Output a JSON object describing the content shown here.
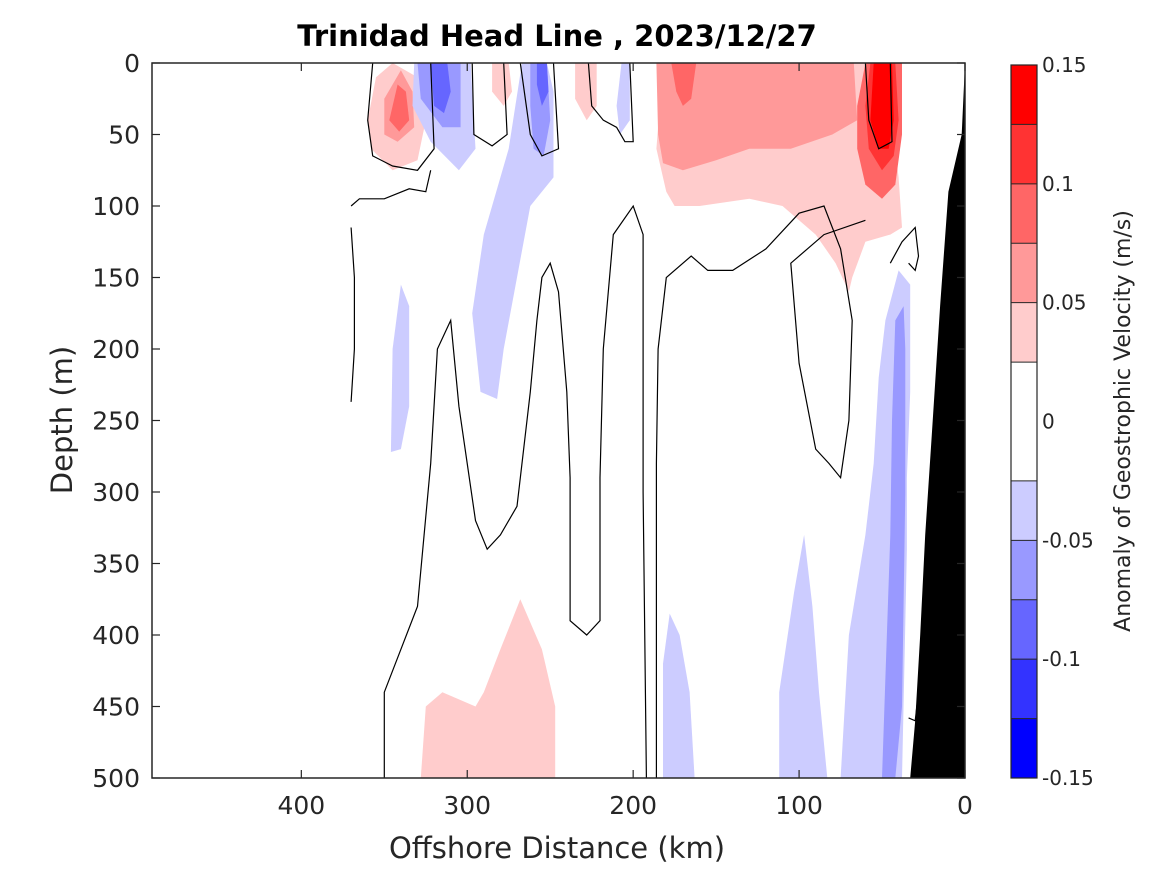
{
  "chart_data": {
    "type": "heatmap",
    "title": "Trinidad Head Line , 2023/12/27",
    "xlabel": "Offshore Distance (km)",
    "ylabel": "Depth (m)",
    "xlim": [
      490,
      0
    ],
    "ylim": [
      0,
      500
    ],
    "x_reversed": true,
    "y_reversed": true,
    "x_ticks": [
      "400",
      "300",
      "200",
      "100",
      "0"
    ],
    "x_tick_values": [
      400,
      300,
      200,
      100,
      0
    ],
    "y_ticks": [
      "0",
      "50",
      "100",
      "150",
      "200",
      "250",
      "300",
      "350",
      "400",
      "450",
      "500"
    ],
    "y_tick_values": [
      0,
      50,
      100,
      150,
      200,
      250,
      300,
      350,
      400,
      450,
      500
    ],
    "colorbar": {
      "label": "Anomaly of Geostrophic Velocity (m/s)",
      "ticks": [
        "0.15",
        "0.1",
        "0.05",
        "0",
        "-0.05",
        "-0.1",
        "-0.15"
      ],
      "tick_values": [
        0.15,
        0.1,
        0.05,
        0,
        -0.05,
        -0.1,
        -0.15
      ],
      "levels": [
        -0.15,
        -0.125,
        -0.1,
        -0.075,
        -0.05,
        -0.025,
        0.025,
        0.05,
        0.075,
        0.1,
        0.125,
        0.15
      ],
      "colors": [
        "#0000ff",
        "#3333ff",
        "#6666ff",
        "#9999ff",
        "#ccccff",
        "#ffffff",
        "#ffcccc",
        "#ff9999",
        "#ff6666",
        "#ff3333",
        "#ff0000"
      ]
    },
    "zero_contour": true,
    "bathymetry_color": "#000000",
    "regions": [
      {
        "level": 1,
        "points": [
          [
            345,
            0
          ],
          [
            355,
            10
          ],
          [
            360,
            40
          ],
          [
            358,
            60
          ],
          [
            345,
            75
          ],
          [
            330,
            68
          ],
          [
            325,
            40
          ],
          [
            330,
            10
          ]
        ]
      },
      {
        "level": 2,
        "points": [
          [
            340,
            5
          ],
          [
            350,
            25
          ],
          [
            350,
            50
          ],
          [
            342,
            55
          ],
          [
            332,
            45
          ],
          [
            333,
            20
          ]
        ]
      },
      {
        "level": 3,
        "points": [
          [
            342,
            15
          ],
          [
            347,
            40
          ],
          [
            341,
            48
          ],
          [
            335,
            40
          ],
          [
            337,
            20
          ]
        ]
      },
      {
        "level": -1,
        "points": [
          [
            322,
            0
          ],
          [
            332,
            0
          ],
          [
            333,
            30
          ],
          [
            322,
            55
          ],
          [
            305,
            75
          ],
          [
            295,
            60
          ],
          [
            298,
            0
          ]
        ]
      },
      {
        "level": -2,
        "points": [
          [
            318,
            0
          ],
          [
            330,
            0
          ],
          [
            328,
            25
          ],
          [
            315,
            45
          ],
          [
            304,
            45
          ],
          [
            304,
            0
          ]
        ]
      },
      {
        "level": -3,
        "points": [
          [
            316,
            0
          ],
          [
            322,
            0
          ],
          [
            320,
            30
          ],
          [
            314,
            35
          ],
          [
            310,
            20
          ],
          [
            312,
            0
          ]
        ]
      },
      {
        "level": 1,
        "points": [
          [
            285,
            0
          ],
          [
            275,
            0
          ],
          [
            273,
            20
          ],
          [
            278,
            30
          ],
          [
            285,
            20
          ]
        ]
      },
      {
        "level": -1,
        "points": [
          [
            267,
            0
          ],
          [
            252,
            0
          ],
          [
            248,
            20
          ],
          [
            248,
            80
          ],
          [
            262,
            100
          ],
          [
            278,
            200
          ],
          [
            282,
            235
          ],
          [
            292,
            230
          ],
          [
            297,
            175
          ],
          [
            290,
            120
          ],
          [
            275,
            60
          ]
        ]
      },
      {
        "level": -2,
        "points": [
          [
            262,
            0
          ],
          [
            252,
            0
          ],
          [
            250,
            40
          ],
          [
            254,
            65
          ],
          [
            260,
            60
          ],
          [
            262,
            30
          ]
        ]
      },
      {
        "level": -3,
        "points": [
          [
            258,
            0
          ],
          [
            252,
            0
          ],
          [
            251,
            20
          ],
          [
            255,
            30
          ],
          [
            258,
            15
          ]
        ]
      },
      {
        "level": 1,
        "points": [
          [
            235,
            0
          ],
          [
            222,
            0
          ],
          [
            222,
            30
          ],
          [
            228,
            40
          ],
          [
            235,
            25
          ]
        ]
      },
      {
        "level": -1,
        "points": [
          [
            207,
            0
          ],
          [
            202,
            0
          ],
          [
            202,
            40
          ],
          [
            208,
            50
          ],
          [
            210,
            30
          ]
        ]
      },
      {
        "level": 1,
        "points": [
          [
            186,
            0
          ],
          [
            184,
            30
          ],
          [
            186,
            60
          ],
          [
            180,
            90
          ],
          [
            175,
            100
          ],
          [
            160,
            100
          ],
          [
            130,
            95
          ],
          [
            110,
            100
          ],
          [
            90,
            120
          ],
          [
            78,
            140
          ],
          [
            70,
            160
          ],
          [
            68,
            150
          ],
          [
            60,
            125
          ],
          [
            45,
            120
          ],
          [
            38,
            115
          ],
          [
            40,
            80
          ],
          [
            45,
            30
          ],
          [
            50,
            0
          ]
        ]
      },
      {
        "level": 2,
        "points": [
          [
            186,
            0
          ],
          [
            185,
            50
          ],
          [
            182,
            70
          ],
          [
            170,
            75
          ],
          [
            150,
            68
          ],
          [
            130,
            60
          ],
          [
            105,
            60
          ],
          [
            80,
            50
          ],
          [
            65,
            40
          ],
          [
            67,
            0
          ]
        ]
      },
      {
        "level": 3,
        "points": [
          [
            177,
            0
          ],
          [
            174,
            20
          ],
          [
            170,
            30
          ],
          [
            165,
            25
          ],
          [
            162,
            0
          ]
        ]
      },
      {
        "level": 3,
        "points": [
          [
            60,
            0
          ],
          [
            65,
            30
          ],
          [
            65,
            60
          ],
          [
            60,
            85
          ],
          [
            50,
            95
          ],
          [
            42,
            85
          ],
          [
            38,
            50
          ],
          [
            38,
            0
          ]
        ]
      },
      {
        "level": 4,
        "points": [
          [
            57,
            0
          ],
          [
            60,
            30
          ],
          [
            58,
            60
          ],
          [
            50,
            75
          ],
          [
            43,
            65
          ],
          [
            40,
            40
          ],
          [
            42,
            0
          ]
        ]
      },
      {
        "level": 5,
        "points": [
          [
            55,
            0
          ],
          [
            57,
            40
          ],
          [
            52,
            60
          ],
          [
            46,
            60
          ],
          [
            43,
            40
          ],
          [
            44,
            0
          ]
        ]
      },
      {
        "level": -1,
        "points": [
          [
            48,
            180
          ],
          [
            40,
            145
          ],
          [
            33,
            155
          ],
          [
            33,
            230
          ],
          [
            35,
            290
          ],
          [
            35,
            340
          ],
          [
            38,
            500
          ],
          [
            75,
            500
          ],
          [
            70,
            400
          ],
          [
            60,
            330
          ],
          [
            55,
            280
          ],
          [
            52,
            220
          ]
        ]
      },
      {
        "level": -2,
        "points": [
          [
            42,
            180
          ],
          [
            37,
            170
          ],
          [
            36,
            200
          ],
          [
            36,
            300
          ],
          [
            38,
            450
          ],
          [
            42,
            500
          ],
          [
            50,
            500
          ],
          [
            48,
            430
          ],
          [
            45,
            330
          ],
          [
            44,
            250
          ]
        ]
      },
      {
        "level": -1,
        "points": [
          [
            340,
            155
          ],
          [
            335,
            170
          ],
          [
            335,
            240
          ],
          [
            340,
            270
          ],
          [
            346,
            272
          ],
          [
            345,
            200
          ]
        ]
      },
      {
        "level": -1,
        "points": [
          [
            178,
            385
          ],
          [
            182,
            420
          ],
          [
            182,
            500
          ],
          [
            163,
            500
          ],
          [
            166,
            440
          ],
          [
            172,
            400
          ]
        ]
      },
      {
        "level": -1,
        "points": [
          [
            97,
            330
          ],
          [
            103,
            370
          ],
          [
            112,
            440
          ],
          [
            112,
            500
          ],
          [
            83,
            500
          ],
          [
            88,
            440
          ],
          [
            92,
            380
          ]
        ]
      },
      {
        "level": 1,
        "points": [
          [
            268,
            375
          ],
          [
            255,
            410
          ],
          [
            247,
            450
          ],
          [
            247,
            500
          ],
          [
            328,
            500
          ],
          [
            325,
            450
          ],
          [
            315,
            440
          ],
          [
            295,
            450
          ],
          [
            290,
            440
          ],
          [
            280,
            410
          ]
        ]
      }
    ],
    "zero_contours": [
      [
        [
          357,
          0
        ],
        [
          360,
          40
        ],
        [
          357,
          65
        ],
        [
          345,
          72
        ],
        [
          330,
          75
        ],
        [
          320,
          60
        ],
        [
          322,
          0
        ]
      ],
      [
        [
          297,
          0
        ],
        [
          296,
          50
        ],
        [
          285,
          58
        ],
        [
          276,
          50
        ],
        [
          278,
          0
        ]
      ],
      [
        [
          268,
          0
        ],
        [
          262,
          50
        ],
        [
          255,
          65
        ],
        [
          245,
          60
        ],
        [
          248,
          0
        ]
      ],
      [
        [
          227,
          0
        ],
        [
          225,
          30
        ],
        [
          218,
          40
        ],
        [
          210,
          45
        ],
        [
          205,
          55
        ],
        [
          200,
          55
        ],
        [
          202,
          0
        ]
      ],
      [
        [
          370,
          100
        ],
        [
          365,
          95
        ],
        [
          350,
          95
        ],
        [
          335,
          88
        ],
        [
          325,
          90
        ],
        [
          322,
          75
        ]
      ],
      [
        [
          370,
          115
        ],
        [
          368,
          150
        ],
        [
          368,
          200
        ],
        [
          370,
          237
        ]
      ],
      [
        [
          350,
          500
        ],
        [
          350,
          440
        ],
        [
          340,
          410
        ],
        [
          330,
          380
        ],
        [
          322,
          280
        ],
        [
          318,
          200
        ],
        [
          310,
          180
        ],
        [
          305,
          240
        ],
        [
          295,
          320
        ],
        [
          288,
          340
        ],
        [
          280,
          330
        ],
        [
          270,
          310
        ],
        [
          262,
          230
        ],
        [
          258,
          180
        ],
        [
          255,
          150
        ],
        [
          250,
          140
        ],
        [
          245,
          160
        ],
        [
          240,
          230
        ],
        [
          238,
          290
        ],
        [
          238,
          390
        ],
        [
          228,
          400
        ],
        [
          220,
          390
        ],
        [
          220,
          290
        ],
        [
          218,
          200
        ],
        [
          212,
          120
        ],
        [
          200,
          100
        ],
        [
          194,
          120
        ],
        [
          194,
          300
        ],
        [
          192,
          500
        ]
      ],
      [
        [
          186,
          500
        ],
        [
          186,
          280
        ],
        [
          185,
          200
        ],
        [
          180,
          150
        ],
        [
          165,
          135
        ],
        [
          155,
          145
        ],
        [
          140,
          145
        ],
        [
          120,
          130
        ],
        [
          100,
          105
        ],
        [
          85,
          100
        ],
        [
          75,
          130
        ],
        [
          68,
          180
        ],
        [
          70,
          250
        ],
        [
          75,
          290
        ],
        [
          82,
          280
        ],
        [
          90,
          270
        ],
        [
          100,
          210
        ],
        [
          105,
          140
        ],
        [
          85,
          120
        ],
        [
          60,
          110
        ]
      ],
      [
        [
          45,
          140
        ],
        [
          38,
          125
        ],
        [
          30,
          115
        ],
        [
          28,
          135
        ],
        [
          30,
          145
        ],
        [
          34,
          140
        ]
      ],
      [
        [
          28,
          440
        ],
        [
          30,
          460
        ],
        [
          34,
          458
        ]
      ],
      [
        [
          60,
          0
        ],
        [
          58,
          40
        ],
        [
          52,
          60
        ],
        [
          44,
          55
        ],
        [
          45,
          0
        ]
      ]
    ],
    "bathymetry": [
      [
        0,
        0
      ],
      [
        2,
        50
      ],
      [
        10,
        90
      ],
      [
        15,
        170
      ],
      [
        20,
        260
      ],
      [
        24,
        330
      ],
      [
        27,
        400
      ],
      [
        30,
        460
      ],
      [
        33,
        500
      ],
      [
        0,
        500
      ]
    ]
  }
}
